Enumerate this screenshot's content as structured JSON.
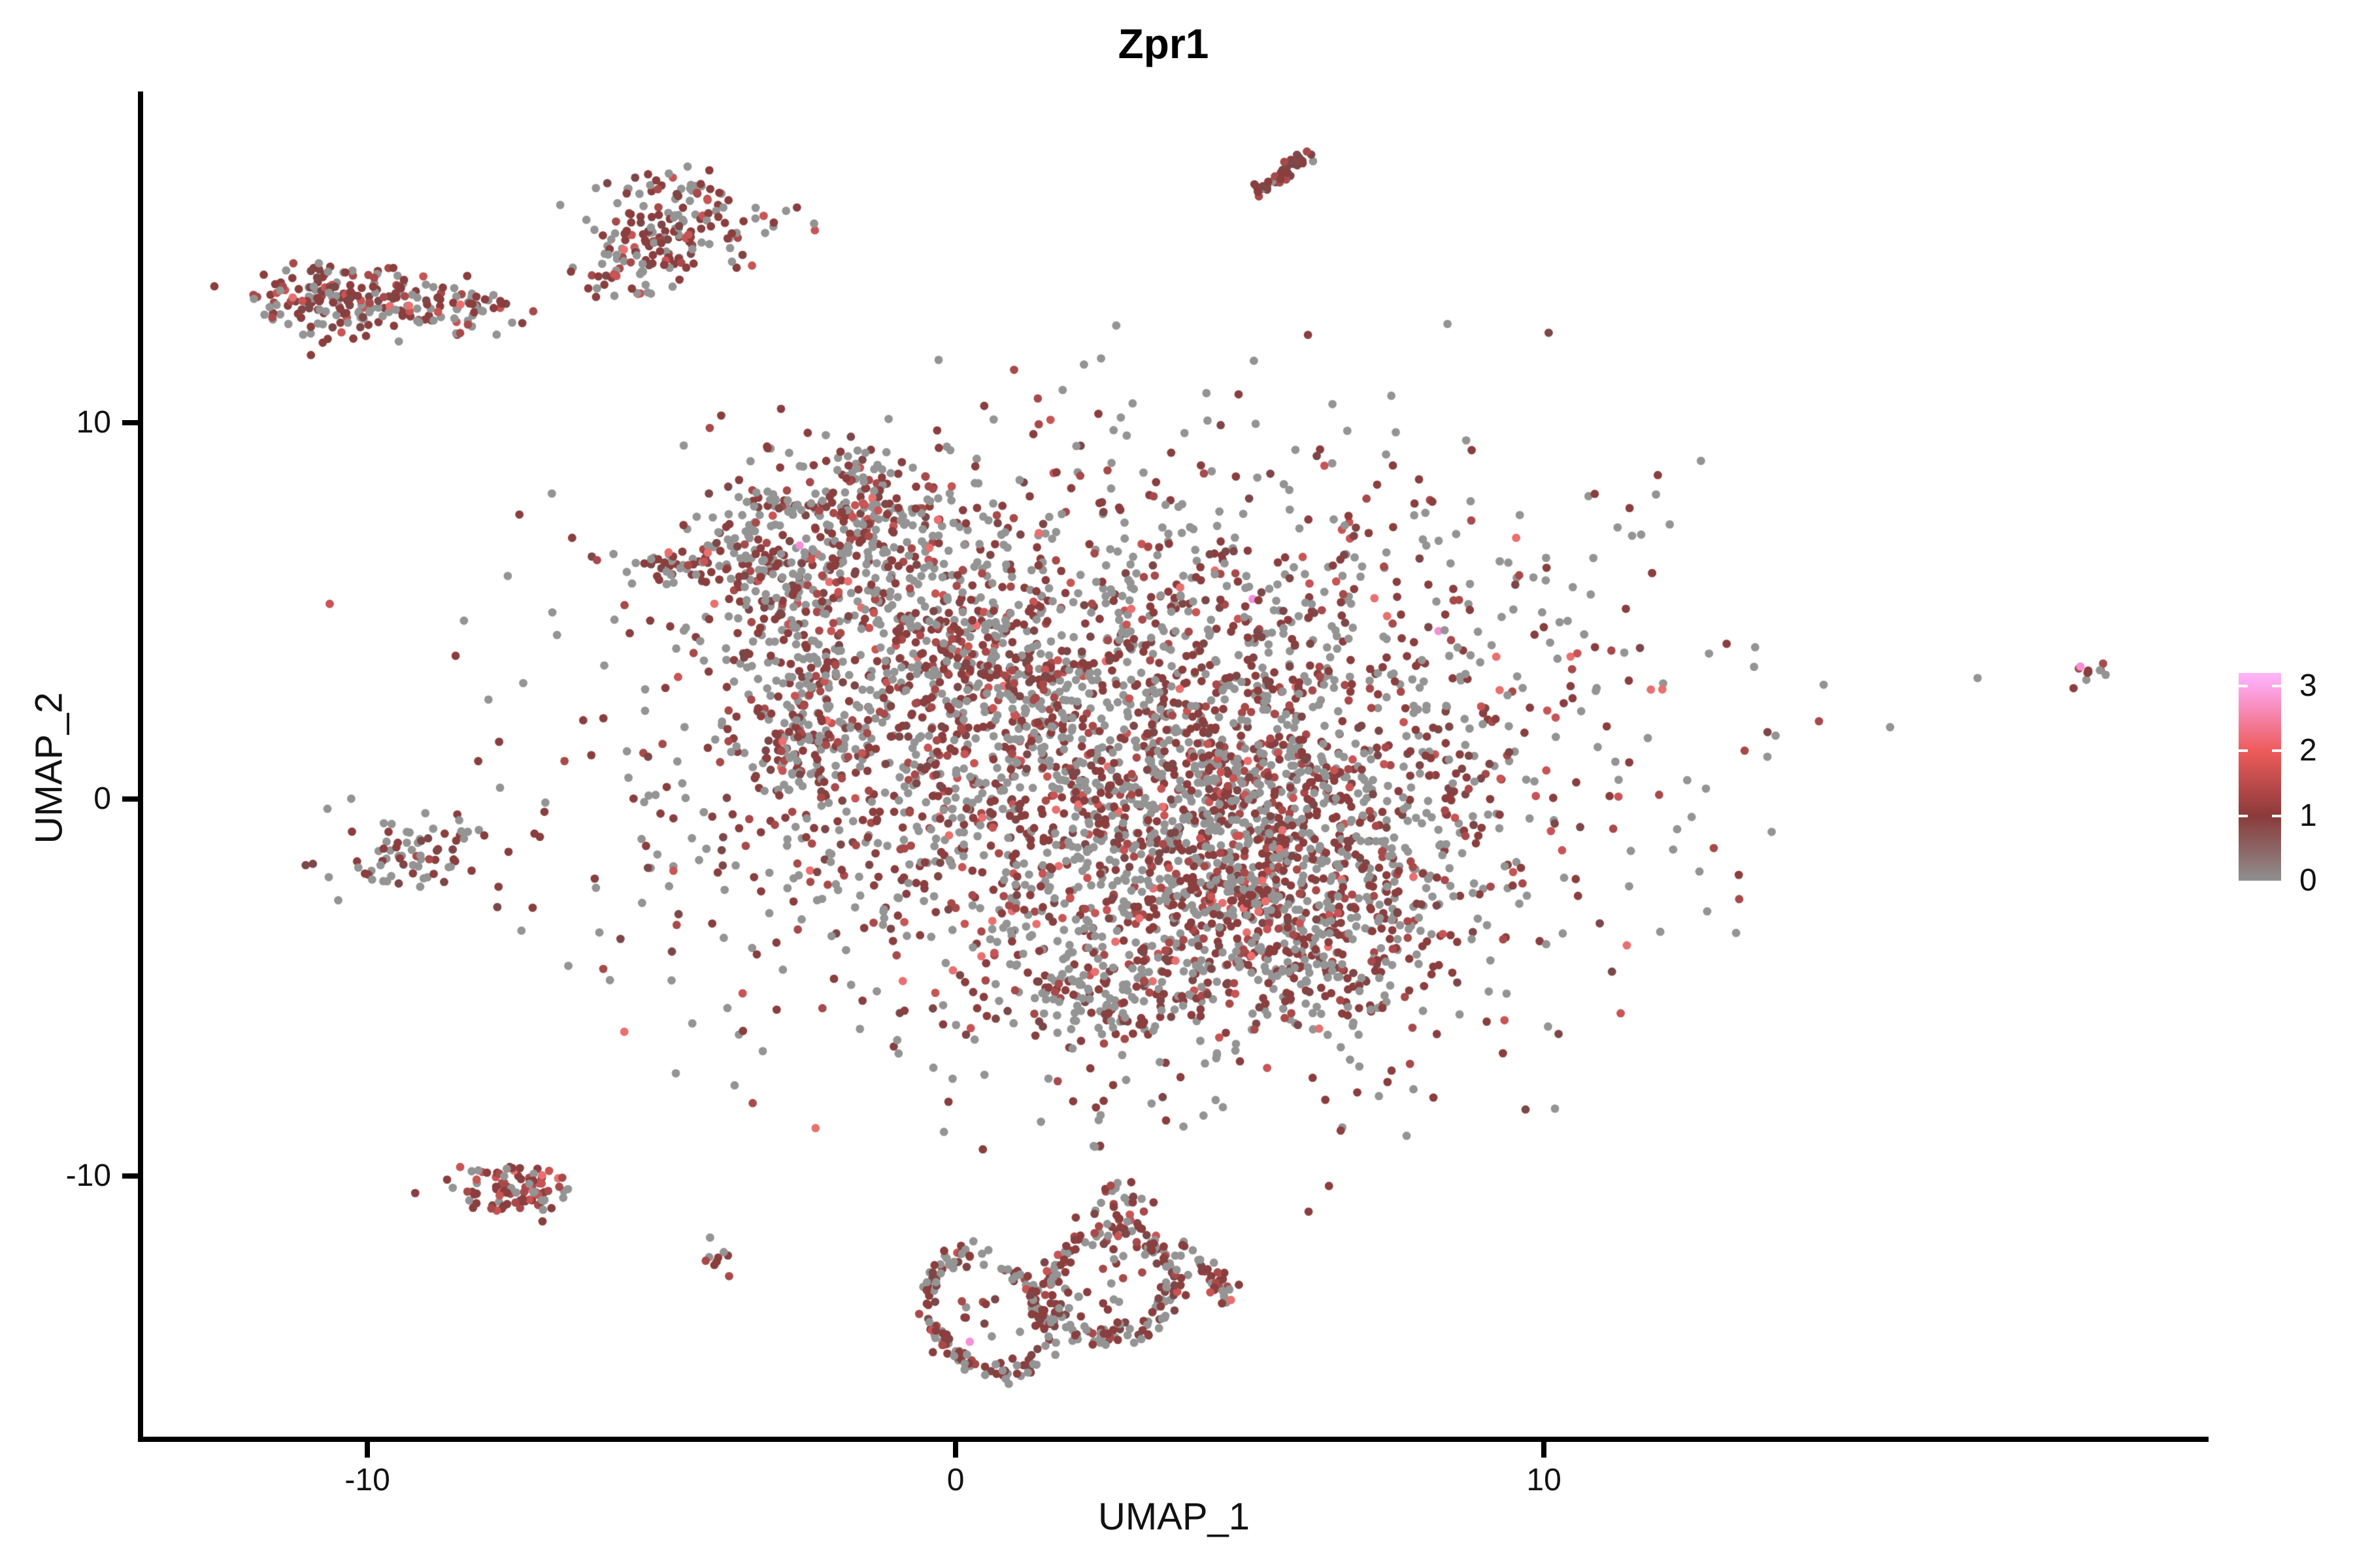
{
  "title": "Zpr1",
  "chart_data": {
    "type": "scatter",
    "title": "Zpr1",
    "xlabel": "UMAP_1",
    "ylabel": "UMAP_2",
    "x_ticks": [
      "-10",
      "0",
      "10"
    ],
    "x_tick_values": [
      -10,
      0,
      10
    ],
    "y_ticks": [
      "10",
      "0",
      "-10"
    ],
    "y_tick_values": [
      10,
      0,
      -10
    ],
    "x_range": [
      -13.79,
      21.21
    ],
    "y_range": [
      -17.0,
      18.79
    ],
    "grid": "off",
    "legend": {
      "position": "right",
      "tick_labels": [
        "3",
        "2",
        "1",
        "0"
      ],
      "tick_values": [
        3,
        2,
        1,
        0
      ],
      "value_range": [
        0,
        3.2
      ],
      "gradient_stops": [
        {
          "value": 0.0,
          "color": "#8F8F8F"
        },
        {
          "value": 1.0,
          "color": "#8B3A3A"
        },
        {
          "value": 2.0,
          "color": "#EE5B5B"
        },
        {
          "value": 3.0,
          "color": "#FCA6EC"
        },
        {
          "value": 3.2,
          "color": "#FEB7F9"
        }
      ]
    },
    "point_radius_px": 6.4,
    "palette": {
      "grey": "#949494",
      "maroon": "#8B3E3E",
      "maroon2": "#7D4747",
      "mid": "#A84A4A",
      "red": "#C85454",
      "salmon": "#EA6F6F",
      "pink": "#F48FD9"
    },
    "mixes": {
      "default": [
        [
          "grey",
          0.465
        ],
        [
          "maroon",
          0.3
        ],
        [
          "maroon2",
          0.09
        ],
        [
          "mid",
          0.09
        ],
        [
          "red",
          0.04
        ],
        [
          "salmon",
          0.012
        ],
        [
          "pink",
          0.0015
        ]
      ],
      "edge": [
        [
          "grey",
          0.4
        ],
        [
          "maroon",
          0.33
        ],
        [
          "maroon2",
          0.12
        ],
        [
          "mid",
          0.09
        ],
        [
          "red",
          0.05
        ],
        [
          "salmon",
          0.01
        ]
      ],
      "greyish": [
        [
          "grey",
          0.55
        ],
        [
          "maroon",
          0.28
        ],
        [
          "maroon2",
          0.11
        ],
        [
          "mid",
          0.06
        ]
      ],
      "streak": [
        [
          "maroon",
          0.55
        ],
        [
          "mid",
          0.2
        ],
        [
          "maroon2",
          0.15
        ],
        [
          "grey",
          0.1
        ]
      ],
      "red": [
        [
          "maroon",
          0.4
        ],
        [
          "mid",
          0.2
        ],
        [
          "red",
          0.13
        ],
        [
          "grey",
          0.23
        ],
        [
          "salmon",
          0.04
        ]
      ],
      "dark": [
        [
          "maroon",
          0.65
        ],
        [
          "mid",
          0.15
        ],
        [
          "grey",
          0.2
        ]
      ],
      "ring": [
        [
          "grey",
          0.45
        ],
        [
          "maroon",
          0.33
        ],
        [
          "maroon2",
          0.1
        ],
        [
          "mid",
          0.08
        ],
        [
          "red",
          0.04
        ]
      ]
    },
    "clusters": [
      {
        "name": "top-streak",
        "type": "line",
        "x": 5.14,
        "y": 16.08,
        "x2": 6.04,
        "y2": 17.16,
        "jx": 0.07,
        "jy": 0.1,
        "n": 42,
        "mix": "streak"
      },
      {
        "name": "topleft-blob-main",
        "type": "blob",
        "x": -4.47,
        "y": 15.49,
        "sx": 0.67,
        "sy": 0.61,
        "rot": -15,
        "n": 120,
        "mix": "edge"
      },
      {
        "name": "topleft-blob-tail",
        "type": "blob",
        "x": -5.41,
        "y": 14.45,
        "sx": 0.5,
        "sy": 0.61,
        "rot": -40,
        "n": 70,
        "mix": "edge"
      },
      {
        "name": "topleft-blob-tip",
        "type": "blob",
        "x": -5.91,
        "y": 13.84,
        "sx": 0.22,
        "sy": 0.21,
        "rot": 0,
        "n": 10,
        "mix": "edge"
      },
      {
        "name": "left-band-a",
        "type": "blob",
        "x": -10.91,
        "y": 13.24,
        "sx": 0.61,
        "sy": 0.55,
        "rot": 10,
        "n": 110,
        "mix": "edge"
      },
      {
        "name": "left-band-b",
        "type": "blob",
        "x": -9.69,
        "y": 13.32,
        "sx": 0.67,
        "sy": 0.43,
        "rot": 0,
        "n": 80,
        "mix": "edge"
      },
      {
        "name": "left-band-c",
        "type": "blob",
        "x": -8.47,
        "y": 13.06,
        "sx": 0.5,
        "sy": 0.35,
        "rot": 0,
        "n": 45,
        "mix": "edge"
      },
      {
        "name": "left-band-stray",
        "type": "blob",
        "x": -7.8,
        "y": 13.2,
        "sx": 0.13,
        "sy": 0.14,
        "rot": 0,
        "n": 5,
        "mix": "greyish"
      },
      {
        "name": "left-middle-blob",
        "type": "blob",
        "x": -9.3,
        "y": -1.51,
        "sx": 0.69,
        "sy": 0.55,
        "rot": 0,
        "n": 72,
        "mix": "greyish"
      },
      {
        "name": "central-arm-spike",
        "type": "blob",
        "x": -4.52,
        "y": 6.21,
        "sx": 0.67,
        "sy": 0.24,
        "rot": -10,
        "n": 48,
        "mix": "default"
      },
      {
        "name": "central-upper-triangle",
        "type": "blob",
        "x": -2.3,
        "y": 6.47,
        "sx": 1.06,
        "sy": 1.3,
        "rot": -20,
        "n": 380,
        "mix": "default"
      },
      {
        "name": "central-hook",
        "type": "blob",
        "x": -1.47,
        "y": 7.94,
        "sx": 0.67,
        "sy": 0.49,
        "rot": -25,
        "n": 80,
        "mix": "default"
      },
      {
        "name": "central-chain",
        "type": "blob",
        "x": -2.52,
        "y": 2.83,
        "sx": 0.39,
        "sy": 1.3,
        "rot": 8,
        "n": 90,
        "mix": "default"
      },
      {
        "name": "central-appendage",
        "type": "blob",
        "x": -2.47,
        "y": 1.27,
        "sx": 0.5,
        "sy": 0.61,
        "rot": 0,
        "n": 70,
        "mix": "default"
      },
      {
        "name": "central-bridge",
        "type": "blob",
        "x": -0.47,
        "y": 4.74,
        "sx": 1.0,
        "sy": 1.21,
        "rot": 0,
        "n": 110,
        "mix": "default"
      },
      {
        "name": "central-main",
        "type": "blob",
        "x": 2.98,
        "y": 1.27,
        "sx": 4.11,
        "sy": 3.73,
        "rot": 25,
        "n": 2400,
        "mix": "default"
      },
      {
        "name": "central-core",
        "type": "blob",
        "x": 4.42,
        "y": -0.99,
        "sx": 2.11,
        "sy": 2.25,
        "rot": 25,
        "n": 800,
        "mix": "default"
      },
      {
        "name": "central-left-edge",
        "type": "blob",
        "x": 0.42,
        "y": 3.35,
        "sx": 1.33,
        "sy": 1.73,
        "rot": 0,
        "n": 280,
        "mix": "default"
      },
      {
        "name": "central-bottom-lobe",
        "type": "blob",
        "x": 5.7,
        "y": -3.85,
        "sx": 1.17,
        "sy": 1.3,
        "rot": 10,
        "n": 280,
        "mix": "default"
      },
      {
        "name": "central-bottom-tail",
        "type": "blob",
        "x": 2.64,
        "y": -5.15,
        "sx": 0.67,
        "sy": 0.78,
        "rot": 0,
        "n": 110,
        "mix": "default"
      },
      {
        "name": "central-neck",
        "type": "blob",
        "x": 4.87,
        "y": -1.86,
        "sx": 0.89,
        "sy": 0.87,
        "rot": 0,
        "n": 60,
        "mix": "default"
      },
      {
        "name": "minus10-band-a",
        "type": "blob",
        "x": -7.97,
        "y": -10.22,
        "sx": 0.53,
        "sy": 0.31,
        "rot": 5,
        "n": 46,
        "mix": "red"
      },
      {
        "name": "minus10-band-b",
        "type": "blob",
        "x": -7.19,
        "y": -10.39,
        "sx": 0.44,
        "sy": 0.28,
        "rot": -8,
        "n": 36,
        "mix": "red"
      },
      {
        "name": "minus10-band-c",
        "type": "blob",
        "x": -7.58,
        "y": -10.67,
        "sx": 0.33,
        "sy": 0.21,
        "rot": 0,
        "n": 15,
        "mix": "red"
      },
      {
        "name": "tiny-dot-cluster",
        "type": "blob",
        "x": -4.16,
        "y": -12.3,
        "sx": 0.18,
        "sy": 0.24,
        "rot": 0,
        "n": 9,
        "mix": "dark"
      },
      {
        "name": "pretzel-left-ring",
        "type": "ring",
        "x": 0.51,
        "y": -13.65,
        "rx": 0.93,
        "ry": 1.61,
        "rot": 15,
        "w": 0.1,
        "n": 150,
        "mix": "ring"
      },
      {
        "name": "pretzel-left-interior",
        "type": "blob",
        "x": 0.51,
        "y": -13.65,
        "sx": 0.44,
        "sy": 0.61,
        "rot": 0,
        "n": 12,
        "mix": "greyish"
      },
      {
        "name": "pretzel-right-ring",
        "type": "ring",
        "x": 2.64,
        "y": -12.87,
        "rx": 1.06,
        "ry": 1.39,
        "rot": -10,
        "w": 0.11,
        "n": 175,
        "mix": "ring"
      },
      {
        "name": "pretzel-right-interior",
        "type": "blob",
        "x": 2.64,
        "y": -12.87,
        "sx": 0.5,
        "sy": 0.7,
        "rot": 0,
        "n": 15,
        "mix": "greyish"
      },
      {
        "name": "pretzel-antenna",
        "type": "blob",
        "x": 2.78,
        "y": -11.05,
        "sx": 0.31,
        "sy": 0.66,
        "rot": 5,
        "n": 42,
        "mix": "ring"
      },
      {
        "name": "pretzel-right-hook",
        "type": "line",
        "x": 3.98,
        "y": -12.0,
        "x2": 4.7,
        "y2": -13.35,
        "jx": 0.1,
        "jy": 0.14,
        "n": 36,
        "mix": "ring"
      },
      {
        "name": "far-right-mini",
        "type": "blob",
        "x": 19.31,
        "y": 3.49,
        "sx": 0.2,
        "sy": 0.23,
        "rot": -20,
        "n": 9,
        "mix": "dark"
      }
    ],
    "extra_points": [
      {
        "x": 19.12,
        "y": 3.52,
        "c": "pink"
      },
      {
        "x": 0.24,
        "y": -14.41,
        "c": "pink"
      },
      {
        "x": 4.68,
        "y": -13.3,
        "c": "salmon"
      },
      {
        "x": -7.03,
        "y": -9.99,
        "c": "salmon"
      },
      {
        "x": 19.55,
        "y": 3.3,
        "c": "grey"
      },
      {
        "x": -3.4,
        "y": 15.7,
        "c": "grey"
      },
      {
        "x": -5.64,
        "y": 14.59,
        "c": "salmon"
      },
      {
        "x": -8.42,
        "y": 13.13,
        "c": "salmon"
      },
      {
        "x": -11.27,
        "y": 13.32,
        "c": "salmon"
      }
    ]
  }
}
